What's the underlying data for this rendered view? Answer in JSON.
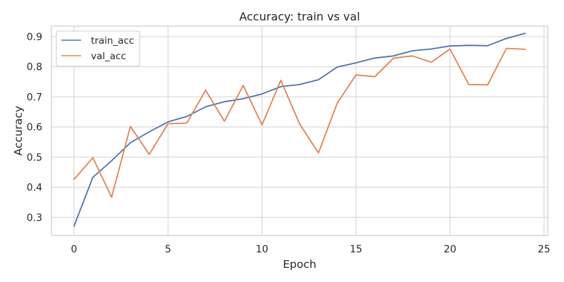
{
  "chart_data": {
    "type": "line",
    "title": "Accuracy: train vs val",
    "xlabel": "Epoch",
    "ylabel": "Accuracy",
    "xlim": [
      -1.2,
      25.2
    ],
    "ylim": [
      0.24,
      0.935
    ],
    "xticks": [
      0,
      5,
      10,
      15,
      20,
      25
    ],
    "yticks": [
      0.3,
      0.4,
      0.5,
      0.6,
      0.7,
      0.8,
      0.9
    ],
    "grid": true,
    "legend_position": "upper left",
    "x": [
      0,
      1,
      2,
      3,
      4,
      5,
      6,
      7,
      8,
      9,
      10,
      11,
      12,
      13,
      14,
      15,
      16,
      17,
      18,
      19,
      20,
      21,
      22,
      23,
      24
    ],
    "series": [
      {
        "name": "train_acc",
        "color": "#4c72b0",
        "values": [
          0.271,
          0.433,
          0.488,
          0.548,
          0.584,
          0.617,
          0.635,
          0.667,
          0.684,
          0.694,
          0.71,
          0.734,
          0.741,
          0.757,
          0.799,
          0.813,
          0.829,
          0.836,
          0.853,
          0.859,
          0.869,
          0.871,
          0.87,
          0.894,
          0.911
        ]
      },
      {
        "name": "val_acc",
        "color": "#dd8452",
        "values": [
          0.426,
          0.498,
          0.367,
          0.602,
          0.509,
          0.611,
          0.613,
          0.722,
          0.619,
          0.738,
          0.607,
          0.755,
          0.61,
          0.514,
          0.679,
          0.773,
          0.767,
          0.829,
          0.836,
          0.815,
          0.859,
          0.741,
          0.74,
          0.861,
          0.858
        ]
      }
    ]
  }
}
